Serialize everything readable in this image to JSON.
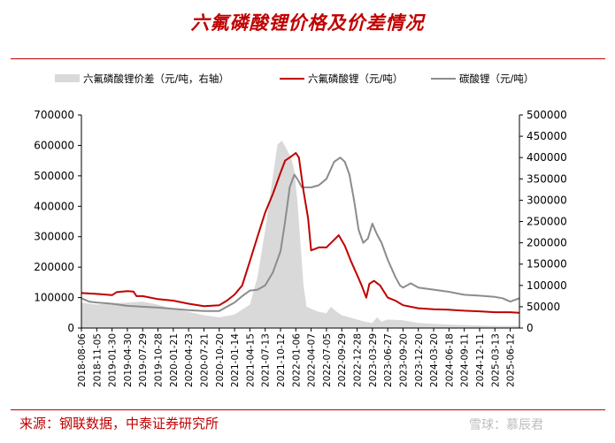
{
  "title": "六氟磷酸锂价格及价差情况",
  "source": "来源：钢联数据，中泰证券研究所",
  "watermark": "雪球：慕辰君",
  "colors": {
    "spread": "#d9d9d9",
    "lipf6": "#c00000",
    "li2co3": "#8c8c8c",
    "accent": "#c00000"
  },
  "chart_data": {
    "type": "line",
    "legend_position": "top",
    "grid": false,
    "left_axis": {
      "min": 0,
      "max": 700000,
      "ticks": [
        0,
        100000,
        200000,
        300000,
        400000,
        500000,
        600000,
        700000
      ]
    },
    "right_axis": {
      "min": 0,
      "max": 500000,
      "ticks": [
        0,
        50000,
        100000,
        150000,
        200000,
        250000,
        300000,
        350000,
        400000,
        450000,
        500000
      ]
    },
    "x_ticks": [
      "2018-08-06",
      "2018-11-05",
      "2019-01-30",
      "2019-04-30",
      "2019-07-29",
      "2019-10-28",
      "2020-01-21",
      "2020-04-23",
      "2020-07-21",
      "2020-10-20",
      "2021-01-14",
      "2021-04-15",
      "2021-07-13",
      "2021-10-12",
      "2022-01-06",
      "2022-04-07",
      "2022-07-05",
      "2022-09-29",
      "2022-12-28",
      "2023-03-29",
      "2023-06-27",
      "2023-09-20",
      "2023-12-20",
      "2024-03-20",
      "2024-06-18",
      "2024-09-11",
      "2024-12-11",
      "2025-03-13",
      "2025-06-12"
    ],
    "series": [
      {
        "name": "六氟磷酸锂价差（元/吨，右轴）",
        "type": "area",
        "axis": "right",
        "points": [
          [
            0,
            60000
          ],
          [
            1,
            55000
          ],
          [
            2,
            58000
          ],
          [
            3,
            60000
          ],
          [
            4,
            62000
          ],
          [
            5,
            55000
          ],
          [
            6,
            45000
          ],
          [
            7,
            38000
          ],
          [
            8,
            30000
          ],
          [
            9,
            25000
          ],
          [
            10,
            32000
          ],
          [
            11,
            55000
          ],
          [
            11.5,
            120000
          ],
          [
            12,
            230000
          ],
          [
            12.4,
            330000
          ],
          [
            12.8,
            430000
          ],
          [
            13.1,
            440000
          ],
          [
            13.4,
            420000
          ],
          [
            13.7,
            400000
          ],
          [
            13.9,
            370000
          ],
          [
            14.1,
            300000
          ],
          [
            14.3,
            200000
          ],
          [
            14.5,
            100000
          ],
          [
            14.7,
            50000
          ],
          [
            15,
            45000
          ],
          [
            15.5,
            38000
          ],
          [
            16,
            35000
          ],
          [
            16.3,
            50000
          ],
          [
            16.6,
            40000
          ],
          [
            17,
            30000
          ],
          [
            17.5,
            25000
          ],
          [
            18,
            20000
          ],
          [
            18.5,
            15000
          ],
          [
            19,
            12000
          ],
          [
            19.3,
            25000
          ],
          [
            19.6,
            15000
          ],
          [
            20,
            20000
          ],
          [
            21,
            18000
          ],
          [
            22,
            12000
          ],
          [
            23,
            10000
          ],
          [
            24,
            8000
          ],
          [
            25,
            7000
          ],
          [
            26,
            6000
          ],
          [
            27,
            5000
          ],
          [
            28,
            5000
          ],
          [
            28.6,
            5000
          ]
        ]
      },
      {
        "name": "六氟磷酸锂（元/吨）",
        "type": "line",
        "axis": "left",
        "points": [
          [
            0,
            115000
          ],
          [
            1,
            112000
          ],
          [
            2,
            108000
          ],
          [
            2.3,
            118000
          ],
          [
            3,
            121000
          ],
          [
            3.4,
            120000
          ],
          [
            3.6,
            105000
          ],
          [
            4,
            105000
          ],
          [
            5,
            95000
          ],
          [
            6,
            90000
          ],
          [
            7,
            80000
          ],
          [
            8,
            72000
          ],
          [
            9,
            75000
          ],
          [
            9.5,
            90000
          ],
          [
            10,
            110000
          ],
          [
            10.5,
            140000
          ],
          [
            11,
            220000
          ],
          [
            11.5,
            300000
          ],
          [
            12,
            380000
          ],
          [
            12.5,
            440000
          ],
          [
            13,
            510000
          ],
          [
            13.3,
            550000
          ],
          [
            13.6,
            560000
          ],
          [
            14,
            575000
          ],
          [
            14.2,
            560000
          ],
          [
            14.5,
            450000
          ],
          [
            14.8,
            360000
          ],
          [
            15,
            255000
          ],
          [
            15.5,
            265000
          ],
          [
            16,
            265000
          ],
          [
            16.5,
            290000
          ],
          [
            16.8,
            305000
          ],
          [
            17.2,
            270000
          ],
          [
            17.6,
            220000
          ],
          [
            18,
            175000
          ],
          [
            18.3,
            140000
          ],
          [
            18.6,
            100000
          ],
          [
            18.8,
            145000
          ],
          [
            19.1,
            155000
          ],
          [
            19.5,
            140000
          ],
          [
            20,
            100000
          ],
          [
            20.5,
            90000
          ],
          [
            21,
            75000
          ],
          [
            22,
            65000
          ],
          [
            23,
            62000
          ],
          [
            24,
            60000
          ],
          [
            25,
            57000
          ],
          [
            26,
            55000
          ],
          [
            27,
            52000
          ],
          [
            28,
            52000
          ],
          [
            28.6,
            50000
          ]
        ]
      },
      {
        "name": "碳酸锂（元/吨）",
        "type": "line",
        "axis": "right",
        "points": [
          [
            0,
            70000
          ],
          [
            0.5,
            62000
          ],
          [
            1,
            60000
          ],
          [
            2,
            57000
          ],
          [
            3,
            52000
          ],
          [
            4,
            50000
          ],
          [
            5,
            48000
          ],
          [
            6,
            45000
          ],
          [
            7,
            42000
          ],
          [
            8,
            40000
          ],
          [
            9,
            40000
          ],
          [
            9.5,
            50000
          ],
          [
            10,
            60000
          ],
          [
            10.5,
            75000
          ],
          [
            11,
            88000
          ],
          [
            11.5,
            90000
          ],
          [
            12,
            100000
          ],
          [
            12.5,
            130000
          ],
          [
            13,
            180000
          ],
          [
            13.3,
            250000
          ],
          [
            13.6,
            330000
          ],
          [
            13.9,
            360000
          ],
          [
            14.1,
            350000
          ],
          [
            14.4,
            330000
          ],
          [
            15,
            330000
          ],
          [
            15.5,
            335000
          ],
          [
            16,
            350000
          ],
          [
            16.5,
            390000
          ],
          [
            16.9,
            400000
          ],
          [
            17.2,
            390000
          ],
          [
            17.5,
            360000
          ],
          [
            17.8,
            300000
          ],
          [
            18.1,
            230000
          ],
          [
            18.4,
            200000
          ],
          [
            18.7,
            210000
          ],
          [
            19,
            245000
          ],
          [
            19.3,
            220000
          ],
          [
            19.6,
            200000
          ],
          [
            20,
            160000
          ],
          [
            20.5,
            120000
          ],
          [
            20.8,
            100000
          ],
          [
            21,
            95000
          ],
          [
            21.5,
            105000
          ],
          [
            22,
            95000
          ],
          [
            23,
            90000
          ],
          [
            24,
            85000
          ],
          [
            25,
            78000
          ],
          [
            26,
            76000
          ],
          [
            27,
            73000
          ],
          [
            27.5,
            70000
          ],
          [
            28,
            62000
          ],
          [
            28.6,
            70000
          ]
        ]
      }
    ]
  }
}
